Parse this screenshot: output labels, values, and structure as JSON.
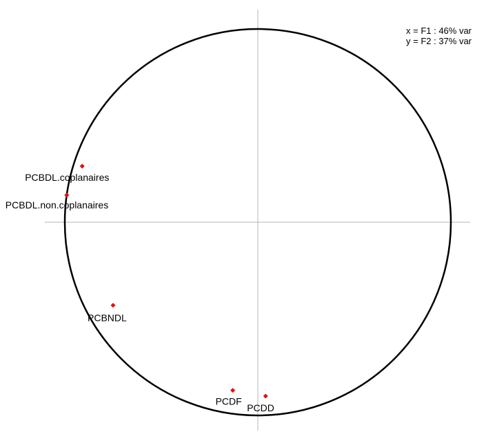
{
  "chart_data": {
    "type": "scatter",
    "title": "",
    "xlabel": "",
    "ylabel": "",
    "xlim": [
      -1,
      1
    ],
    "ylim": [
      -1,
      1
    ],
    "correlation_circle": true,
    "grid": false,
    "legend": [
      "x = F1 : 46% var",
      "y = F2 : 37% var"
    ],
    "colors": {
      "point": "#e01010",
      "circle": "#000000",
      "axis": "#b4b4b4"
    },
    "points": [
      {
        "label": "PCBDL.coplanaires",
        "x": -0.91,
        "y": 0.29
      },
      {
        "label": "PCBDL.non.coplanaires",
        "x": -0.99,
        "y": 0.14
      },
      {
        "label": "PCBNDL",
        "x": -0.75,
        "y": -0.43
      },
      {
        "label": "PCDF",
        "x": -0.13,
        "y": -0.87
      },
      {
        "label": "PCDD",
        "x": 0.04,
        "y": -0.9
      }
    ]
  }
}
